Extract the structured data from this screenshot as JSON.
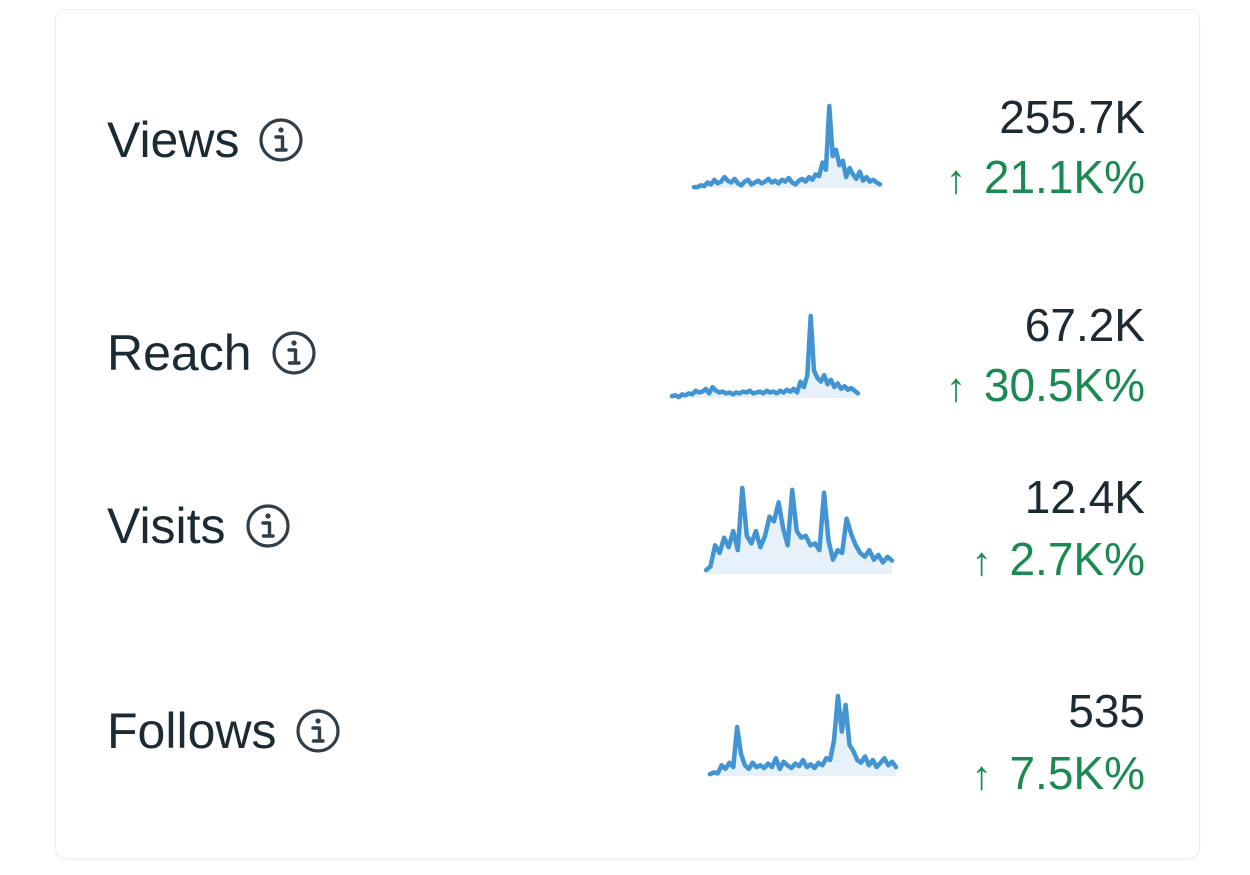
{
  "colors": {
    "text": "#1c2b33",
    "positive": "#1a8a52",
    "sparkline_line": "#4394d3",
    "sparkline_fill": "#e6f1fa",
    "icon": "#2f3e48"
  },
  "metrics": [
    {
      "label": "Views",
      "info_icon": "info-circle-icon",
      "value": "255.7K",
      "change_arrow": "↑",
      "change": "21.1K%",
      "trend": [
        1,
        1,
        3,
        2,
        6,
        4,
        9,
        5,
        7,
        12,
        8,
        6,
        10,
        5,
        3,
        7,
        9,
        4,
        6,
        8,
        5,
        7,
        10,
        6,
        8,
        5,
        9,
        7,
        11,
        6,
        4,
        8,
        10,
        7,
        12,
        9,
        15,
        13,
        28,
        20,
        90,
        35,
        42,
        25,
        30,
        12,
        22,
        15,
        10,
        18,
        8,
        12,
        7,
        9,
        6,
        4
      ]
    },
    {
      "label": "Reach",
      "info_icon": "info-circle-icon",
      "value": "67.2K",
      "change_arrow": "↑",
      "change": "30.5K%",
      "trend": [
        2,
        3,
        1,
        4,
        3,
        5,
        4,
        8,
        6,
        7,
        10,
        5,
        12,
        8,
        6,
        7,
        5,
        6,
        4,
        6,
        5,
        7,
        6,
        8,
        5,
        6,
        7,
        5,
        8,
        6,
        7,
        5,
        8,
        6,
        9,
        7,
        10,
        6,
        18,
        12,
        25,
        90,
        30,
        22,
        18,
        25,
        15,
        20,
        12,
        16,
        10,
        13,
        9,
        11,
        8,
        5
      ]
    },
    {
      "label": "Visits",
      "info_icon": "info-circle-icon",
      "value": "12.4K",
      "change_arrow": "↑",
      "change": "2.7K%",
      "trend": [
        4,
        8,
        30,
        22,
        38,
        28,
        45,
        25,
        90,
        40,
        32,
        45,
        28,
        40,
        60,
        55,
        75,
        48,
        30,
        88,
        45,
        38,
        40,
        30,
        32,
        25,
        85,
        35,
        15,
        25,
        22,
        58,
        42,
        30,
        22,
        18,
        25,
        15,
        20,
        12,
        18,
        14
      ]
    },
    {
      "label": "Follows",
      "info_icon": "info-circle-icon",
      "value": "535",
      "change_arrow": "↑",
      "change": "7.5K%",
      "trend": [
        2,
        4,
        3,
        12,
        8,
        15,
        10,
        55,
        25,
        12,
        8,
        15,
        10,
        12,
        9,
        14,
        10,
        20,
        8,
        16,
        12,
        9,
        14,
        11,
        18,
        10,
        13,
        9,
        15,
        12,
        20,
        18,
        40,
        90,
        50,
        80,
        35,
        28,
        18,
        15,
        22,
        12,
        18,
        10,
        15,
        20,
        12,
        16,
        10
      ]
    }
  ]
}
